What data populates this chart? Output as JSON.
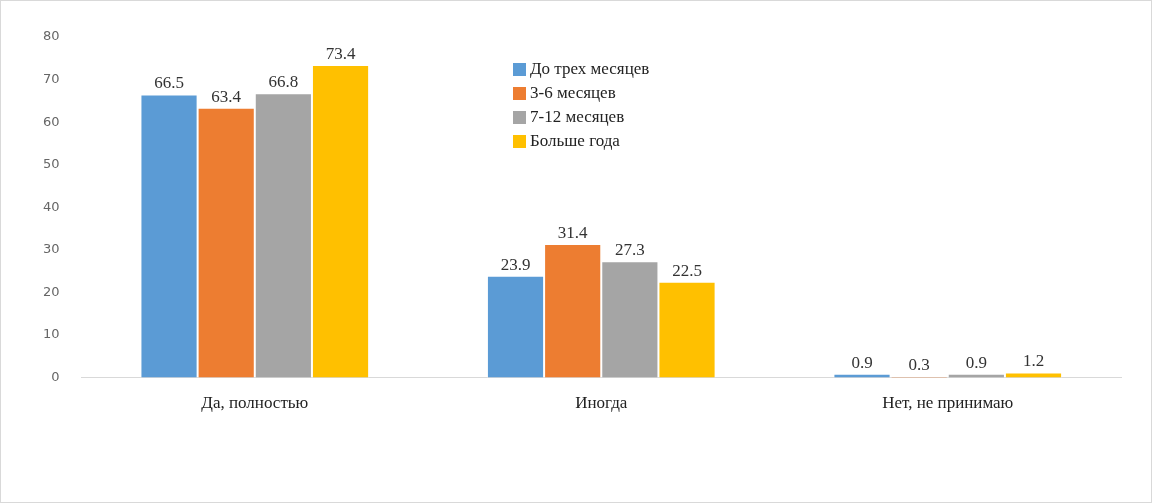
{
  "chart_data": {
    "type": "bar",
    "categories": [
      "Да, полностью",
      "Иногда",
      "Нет, не принимаю"
    ],
    "series": [
      {
        "name": "До трех месяцев",
        "color": "#5b9bd5",
        "values": [
          66.5,
          23.9,
          0.9
        ]
      },
      {
        "name": "3-6 месяцев",
        "color": "#ed7d31",
        "values": [
          63.4,
          31.4,
          0.3
        ]
      },
      {
        "name": "7-12 месяцев",
        "color": "#a5a5a5",
        "values": [
          66.8,
          27.3,
          0.9
        ]
      },
      {
        "name": "Больше года",
        "color": "#ffc000",
        "values": [
          73.4,
          22.5,
          1.2
        ]
      }
    ],
    "ylim": [
      0,
      80
    ],
    "yticks": [
      0,
      10,
      20,
      30,
      40,
      50,
      60,
      70,
      80
    ],
    "grid": false,
    "legend": "top",
    "data_labels": true
  }
}
